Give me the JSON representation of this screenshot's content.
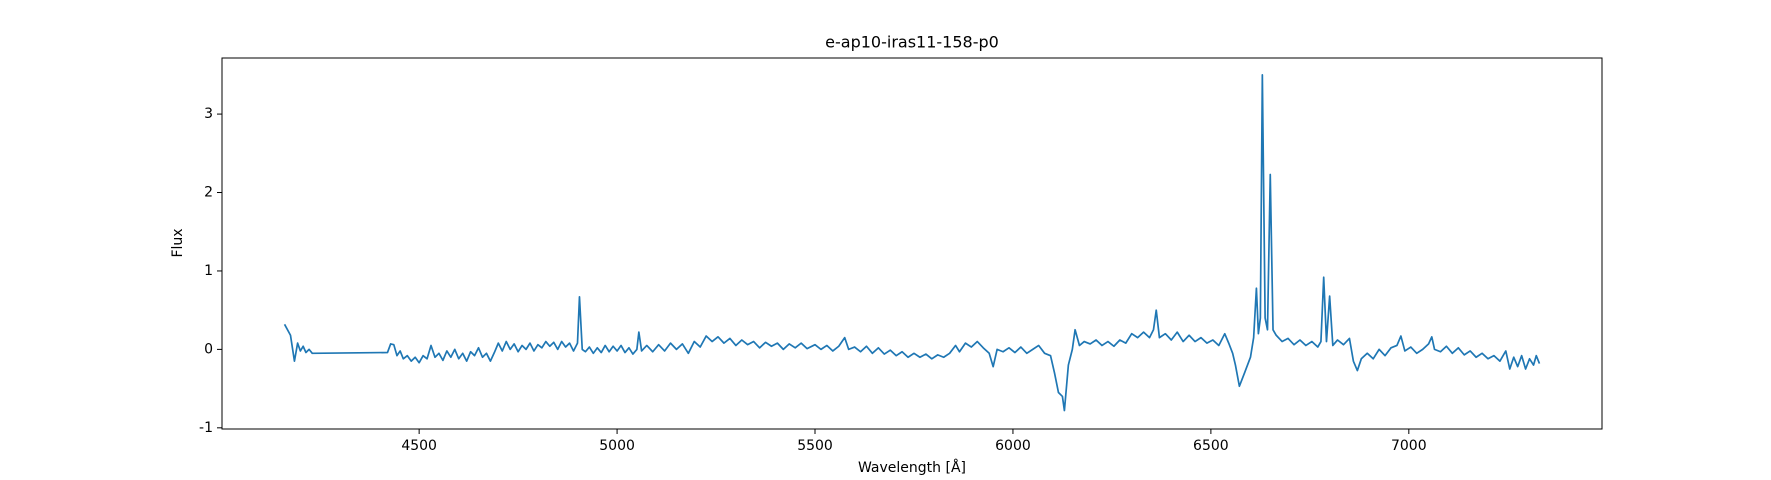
{
  "chart_data": {
    "type": "line",
    "title": "e-ap10-iras11-158-p0",
    "x_label": "Wavelength [Å]",
    "y_label": "Flux",
    "xlim": [
      4002,
      7488
    ],
    "ylim": [
      -1.015,
      3.715
    ],
    "xticks": [
      4500,
      5000,
      5500,
      6000,
      6500,
      7000
    ],
    "yticks": [
      -1,
      0,
      1,
      2,
      3
    ],
    "series": [
      {
        "color": "#1f77b4",
        "x": [
          4160,
          4175,
          4185,
          4193,
          4200,
          4207,
          4214,
          4222,
          4230,
          4420,
          4428,
          4436,
          4444,
          4452,
          4460,
          4470,
          4480,
          4490,
          4500,
          4510,
          4520,
          4530,
          4540,
          4550,
          4560,
          4570,
          4580,
          4590,
          4600,
          4610,
          4620,
          4630,
          4640,
          4650,
          4660,
          4670,
          4680,
          4690,
          4700,
          4710,
          4720,
          4730,
          4740,
          4750,
          4760,
          4770,
          4780,
          4790,
          4800,
          4810,
          4820,
          4830,
          4840,
          4850,
          4860,
          4870,
          4880,
          4890,
          4900,
          4905,
          4912,
          4920,
          4930,
          4940,
          4950,
          4960,
          4970,
          4980,
          4990,
          5000,
          5010,
          5020,
          5030,
          5040,
          5050,
          5055,
          5062,
          5075,
          5090,
          5105,
          5120,
          5135,
          5150,
          5165,
          5180,
          5195,
          5210,
          5225,
          5240,
          5255,
          5270,
          5285,
          5300,
          5315,
          5330,
          5345,
          5360,
          5375,
          5390,
          5405,
          5420,
          5435,
          5450,
          5465,
          5480,
          5500,
          5515,
          5530,
          5545,
          5560,
          5575,
          5585,
          5600,
          5615,
          5630,
          5645,
          5660,
          5675,
          5690,
          5705,
          5720,
          5735,
          5750,
          5765,
          5780,
          5795,
          5810,
          5825,
          5840,
          5855,
          5865,
          5880,
          5895,
          5910,
          5925,
          5940,
          5950,
          5960,
          5975,
          5990,
          6005,
          6020,
          6035,
          6050,
          6065,
          6080,
          6095,
          6105,
          6115,
          6125,
          6130,
          6140,
          6150,
          6157,
          6168,
          6180,
          6195,
          6210,
          6225,
          6240,
          6255,
          6270,
          6285,
          6300,
          6315,
          6330,
          6345,
          6355,
          6362,
          6370,
          6385,
          6400,
          6415,
          6430,
          6445,
          6460,
          6475,
          6490,
          6505,
          6520,
          6535,
          6545,
          6555,
          6562,
          6572,
          6585,
          6600,
          6608,
          6615,
          6620,
          6625,
          6630,
          6637,
          6643,
          6650,
          6657,
          6665,
          6680,
          6695,
          6710,
          6725,
          6740,
          6755,
          6770,
          6778,
          6785,
          6792,
          6800,
          6808,
          6820,
          6835,
          6850,
          6860,
          6870,
          6880,
          6895,
          6910,
          6925,
          6940,
          6955,
          6970,
          6980,
          6990,
          7005,
          7020,
          7035,
          7050,
          7058,
          7065,
          7080,
          7095,
          7110,
          7125,
          7140,
          7155,
          7170,
          7185,
          7200,
          7215,
          7230,
          7245,
          7255,
          7265,
          7275,
          7285,
          7295,
          7305,
          7315,
          7322,
          7330
        ],
        "values": [
          0.32,
          0.18,
          -0.15,
          0.08,
          -0.02,
          0.04,
          -0.04,
          0.0,
          -0.05,
          -0.04,
          0.07,
          0.06,
          -0.08,
          -0.02,
          -0.12,
          -0.08,
          -0.15,
          -0.1,
          -0.17,
          -0.08,
          -0.12,
          0.05,
          -0.1,
          -0.05,
          -0.14,
          -0.02,
          -0.1,
          0.0,
          -0.12,
          -0.05,
          -0.15,
          -0.03,
          -0.08,
          0.02,
          -0.1,
          -0.05,
          -0.15,
          -0.04,
          0.08,
          -0.02,
          0.1,
          0.0,
          0.07,
          -0.03,
          0.05,
          0.0,
          0.08,
          -0.02,
          0.06,
          0.02,
          0.1,
          0.04,
          0.09,
          0.0,
          0.1,
          0.03,
          0.08,
          -0.02,
          0.08,
          0.67,
          0.0,
          -0.03,
          0.03,
          -0.05,
          0.02,
          -0.04,
          0.05,
          -0.03,
          0.04,
          -0.02,
          0.05,
          -0.04,
          0.02,
          -0.06,
          0.0,
          0.22,
          -0.02,
          0.05,
          -0.03,
          0.06,
          -0.02,
          0.08,
          0.0,
          0.07,
          -0.05,
          0.1,
          0.03,
          0.17,
          0.1,
          0.16,
          0.08,
          0.14,
          0.05,
          0.12,
          0.06,
          0.1,
          0.02,
          0.09,
          0.04,
          0.08,
          0.0,
          0.07,
          0.02,
          0.08,
          0.01,
          0.06,
          0.0,
          0.05,
          -0.02,
          0.04,
          0.15,
          0.0,
          0.03,
          -0.03,
          0.04,
          -0.05,
          0.02,
          -0.06,
          -0.01,
          -0.08,
          -0.03,
          -0.1,
          -0.05,
          -0.1,
          -0.06,
          -0.12,
          -0.07,
          -0.1,
          -0.05,
          0.05,
          -0.03,
          0.08,
          0.03,
          0.1,
          0.02,
          -0.05,
          -0.22,
          0.0,
          -0.03,
          0.02,
          -0.04,
          0.03,
          -0.05,
          0.0,
          0.05,
          -0.05,
          -0.08,
          -0.3,
          -0.55,
          -0.6,
          -0.78,
          -0.2,
          0.0,
          0.25,
          0.05,
          0.1,
          0.07,
          0.12,
          0.05,
          0.1,
          0.04,
          0.12,
          0.08,
          0.2,
          0.15,
          0.22,
          0.15,
          0.25,
          0.5,
          0.15,
          0.2,
          0.12,
          0.22,
          0.1,
          0.18,
          0.1,
          0.15,
          0.08,
          0.12,
          0.05,
          0.2,
          0.08,
          -0.05,
          -0.2,
          -0.47,
          -0.3,
          -0.1,
          0.15,
          0.78,
          0.2,
          0.4,
          3.5,
          0.4,
          0.25,
          2.23,
          0.25,
          0.18,
          0.1,
          0.14,
          0.06,
          0.12,
          0.05,
          0.1,
          0.03,
          0.1,
          0.92,
          0.1,
          0.68,
          0.05,
          0.12,
          0.06,
          0.14,
          -0.15,
          -0.27,
          -0.12,
          -0.05,
          -0.12,
          0.0,
          -0.08,
          0.02,
          0.05,
          0.17,
          -0.02,
          0.03,
          -0.05,
          0.0,
          0.07,
          0.16,
          0.0,
          -0.03,
          0.04,
          -0.05,
          0.02,
          -0.07,
          -0.02,
          -0.1,
          -0.05,
          -0.12,
          -0.08,
          -0.15,
          -0.02,
          -0.25,
          -0.1,
          -0.22,
          -0.08,
          -0.25,
          -0.12,
          -0.2,
          -0.08,
          -0.18
        ]
      }
    ]
  }
}
